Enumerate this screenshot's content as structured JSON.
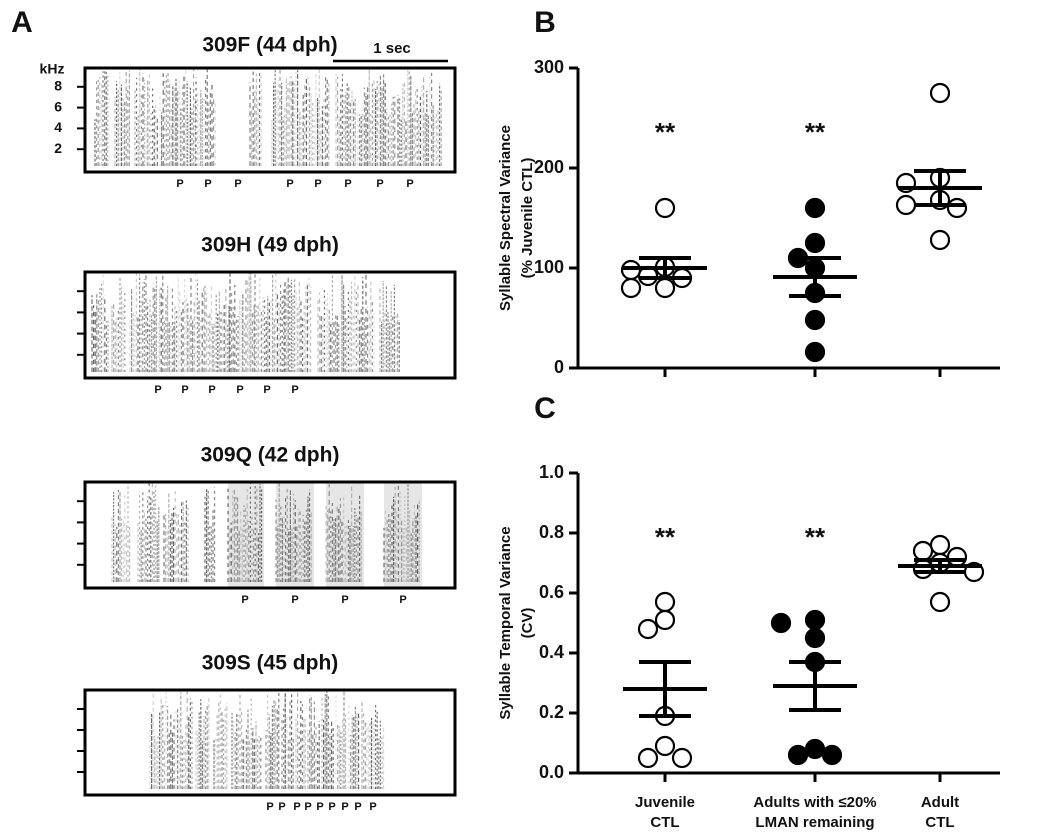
{
  "panel_labels": [
    "A",
    "B",
    "C"
  ],
  "spectrograms": [
    {
      "title": "309F (44 dph)",
      "y_unit": "kHz",
      "ylim": [
        0,
        10
      ],
      "yticks": [
        2,
        4,
        6,
        8
      ],
      "scale_bar": "1 sec",
      "p_labels": [
        "P",
        "P",
        "P",
        "P",
        "P",
        "P",
        "P",
        "P"
      ]
    },
    {
      "title": "309H (49 dph)",
      "p_labels": [
        "P",
        "P",
        "P",
        "P",
        "P",
        "P"
      ]
    },
    {
      "title": "309Q (42 dph)",
      "p_labels": [
        "P",
        "P",
        "P",
        "P"
      ]
    },
    {
      "title": "309S (45 dph)",
      "p_labels": [
        "P",
        "P",
        "P",
        "P",
        "P",
        "P",
        "P",
        "P",
        "P"
      ]
    }
  ],
  "chart_data": [
    {
      "type": "dotplot",
      "ylabel": [
        "Syllable Spectral Variance",
        "(% Juvenile CTL)"
      ],
      "ylim": [
        0,
        300
      ],
      "yticks": [
        0,
        100,
        200,
        300
      ],
      "categories": [
        null,
        null,
        null
      ],
      "groups": [
        {
          "fill": "#ffffff",
          "values": [
            160,
            101,
            98,
            92,
            90,
            80,
            80
          ],
          "mean": 100,
          "sem": 10,
          "annotation": "**"
        },
        {
          "fill": "#000000",
          "values": [
            160,
            125,
            110,
            75,
            48,
            16,
            100
          ],
          "mean": 91,
          "sem": 19,
          "annotation": "**"
        },
        {
          "fill": "#ffffff",
          "values": [
            275,
            190,
            185,
            168,
            163,
            160,
            128
          ],
          "mean": 180,
          "sem": 17
        }
      ]
    },
    {
      "type": "dotplot",
      "ylabel": [
        "Syllable Temporal Variance",
        "(CV)"
      ],
      "ylim": [
        0,
        1.0
      ],
      "yticks": [
        {
          "value": 0,
          "label": "0.0"
        },
        0.2,
        0.4,
        0.6,
        0.8,
        {
          "value": 1,
          "label": "1.0"
        }
      ],
      "categories": [
        [
          "Juvenile",
          "CTL"
        ],
        [
          "Adults with ≤20%",
          "LMAN remaining"
        ],
        [
          "Adult",
          "CTL"
        ]
      ],
      "groups": [
        {
          "fill": "#ffffff",
          "values": [
            0.57,
            0.51,
            0.48,
            0.19,
            0.09,
            0.05,
            0.05
          ],
          "mean": 0.28,
          "sem": 0.09,
          "annotation": "**"
        },
        {
          "fill": "#000000",
          "values": [
            0.51,
            0.5,
            0.45,
            0.37,
            0.08,
            0.06,
            0.06
          ],
          "mean": 0.29,
          "sem": 0.08,
          "annotation": "**"
        },
        {
          "fill": "#ffffff",
          "values": [
            0.76,
            0.74,
            0.72,
            0.7,
            0.68,
            0.67,
            0.57
          ],
          "mean": 0.69,
          "sem": 0.02
        }
      ]
    }
  ]
}
